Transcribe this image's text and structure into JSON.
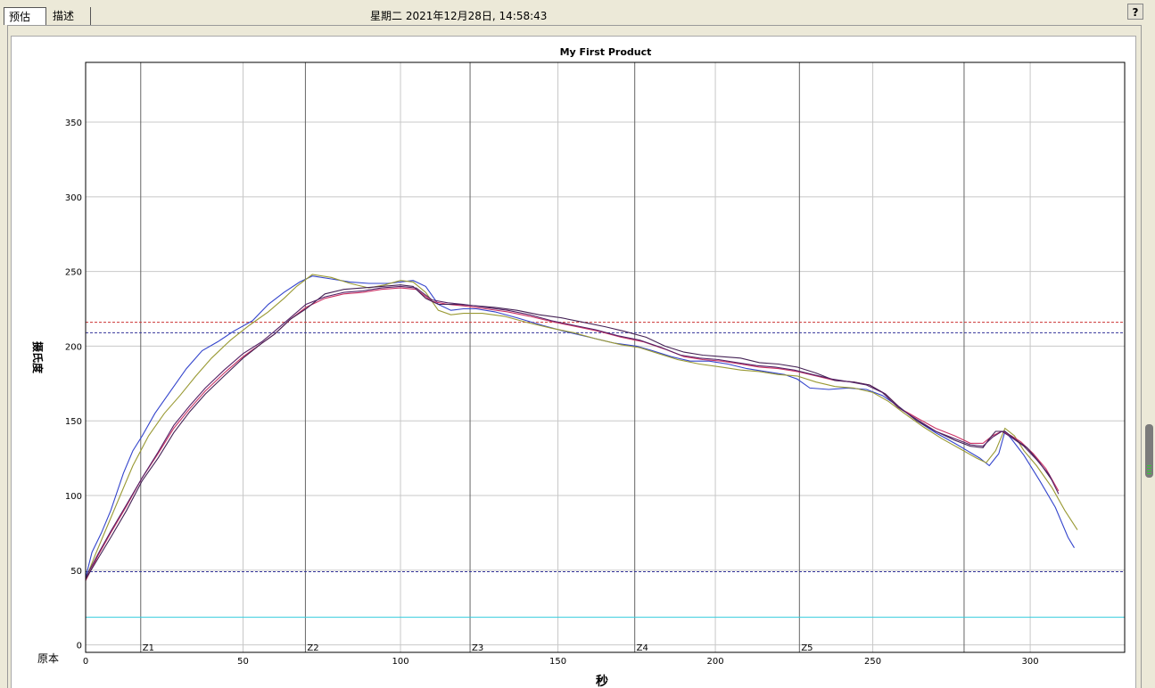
{
  "tabs": [
    {
      "label": "预估"
    },
    {
      "label": "描述"
    }
  ],
  "header": {
    "datetime": "星期二 2021年12月28日, 14:58:43",
    "help_label": "?"
  },
  "chart_data": {
    "type": "line",
    "title": "My First Product",
    "xlabel": "秒",
    "ylabel": "摄氏度",
    "corner_label": "原本",
    "xlim": [
      0,
      330
    ],
    "ylim": [
      -5,
      390
    ],
    "xticks": [
      0,
      50,
      100,
      150,
      200,
      250,
      300
    ],
    "yticks": [
      0,
      50,
      100,
      150,
      200,
      250,
      300,
      350
    ],
    "grid": true,
    "zones": [
      {
        "label": "Z1",
        "x": 17.5
      },
      {
        "label": "Z2",
        "x": 69.8
      },
      {
        "label": "Z3",
        "x": 122.1
      },
      {
        "label": "Z4",
        "x": 174.4
      },
      {
        "label": "Z5",
        "x": 226.7
      },
      {
        "label": "",
        "x": 279.0
      }
    ],
    "reference_lines": [
      {
        "y": 216,
        "color": "#cc3333",
        "style": "dashed"
      },
      {
        "y": 209,
        "color": "#333399",
        "style": "dashed"
      },
      {
        "y": 49,
        "color": "#333399",
        "style": "dashed"
      },
      {
        "y": 18.5,
        "color": "#33ccdd",
        "style": "solid"
      }
    ],
    "series": [
      {
        "color": "#3344cc",
        "points": [
          [
            0,
            45
          ],
          [
            2,
            62
          ],
          [
            5,
            75
          ],
          [
            8,
            90
          ],
          [
            12,
            115
          ],
          [
            15,
            130
          ],
          [
            18,
            140
          ],
          [
            22,
            155
          ],
          [
            27,
            170
          ],
          [
            32,
            185
          ],
          [
            37,
            197
          ],
          [
            42,
            203
          ],
          [
            47,
            210
          ],
          [
            53,
            217
          ],
          [
            58,
            228
          ],
          [
            63,
            236
          ],
          [
            68,
            243
          ],
          [
            72,
            247
          ],
          [
            78,
            245
          ],
          [
            84,
            243
          ],
          [
            90,
            242
          ],
          [
            96,
            242
          ],
          [
            100,
            243
          ],
          [
            104,
            244
          ],
          [
            108,
            240
          ],
          [
            112,
            228
          ],
          [
            116,
            224
          ],
          [
            120,
            225
          ],
          [
            124,
            225
          ],
          [
            130,
            223
          ],
          [
            137,
            219
          ],
          [
            145,
            214
          ],
          [
            152,
            210
          ],
          [
            160,
            206
          ],
          [
            168,
            202
          ],
          [
            175,
            200
          ],
          [
            180,
            197
          ],
          [
            186,
            193
          ],
          [
            192,
            190
          ],
          [
            198,
            190
          ],
          [
            204,
            188
          ],
          [
            210,
            185
          ],
          [
            216,
            183
          ],
          [
            222,
            181
          ],
          [
            226,
            178
          ],
          [
            230,
            172
          ],
          [
            236,
            171
          ],
          [
            242,
            172
          ],
          [
            248,
            171
          ],
          [
            253,
            167
          ],
          [
            258,
            160
          ],
          [
            264,
            150
          ],
          [
            270,
            142
          ],
          [
            276,
            135
          ],
          [
            280,
            130
          ],
          [
            284,
            125
          ],
          [
            287,
            120
          ],
          [
            290,
            128
          ],
          [
            292,
            143
          ],
          [
            294,
            138
          ],
          [
            298,
            127
          ],
          [
            303,
            110
          ],
          [
            308,
            92
          ],
          [
            312,
            72
          ],
          [
            314,
            65
          ]
        ]
      },
      {
        "color": "#999933",
        "points": [
          [
            0,
            44
          ],
          [
            3,
            60
          ],
          [
            7,
            80
          ],
          [
            11,
            100
          ],
          [
            15,
            120
          ],
          [
            20,
            140
          ],
          [
            25,
            155
          ],
          [
            30,
            167
          ],
          [
            35,
            180
          ],
          [
            40,
            192
          ],
          [
            46,
            204
          ],
          [
            52,
            214
          ],
          [
            58,
            223
          ],
          [
            63,
            232
          ],
          [
            67,
            240
          ],
          [
            72,
            248
          ],
          [
            78,
            246
          ],
          [
            84,
            242
          ],
          [
            90,
            239
          ],
          [
            95,
            241
          ],
          [
            100,
            244
          ],
          [
            104,
            243
          ],
          [
            108,
            236
          ],
          [
            112,
            224
          ],
          [
            116,
            221
          ],
          [
            120,
            222
          ],
          [
            126,
            222
          ],
          [
            133,
            220
          ],
          [
            140,
            216
          ],
          [
            148,
            212
          ],
          [
            155,
            209
          ],
          [
            162,
            205
          ],
          [
            170,
            201
          ],
          [
            176,
            199
          ],
          [
            182,
            195
          ],
          [
            188,
            191
          ],
          [
            195,
            188
          ],
          [
            202,
            186
          ],
          [
            208,
            184
          ],
          [
            214,
            183
          ],
          [
            220,
            181
          ],
          [
            226,
            180
          ],
          [
            232,
            176
          ],
          [
            238,
            173
          ],
          [
            244,
            172
          ],
          [
            250,
            169
          ],
          [
            255,
            163
          ],
          [
            260,
            155
          ],
          [
            266,
            146
          ],
          [
            272,
            138
          ],
          [
            278,
            131
          ],
          [
            283,
            125
          ],
          [
            286,
            122
          ],
          [
            289,
            130
          ],
          [
            292,
            145
          ],
          [
            295,
            140
          ],
          [
            298,
            130
          ],
          [
            302,
            120
          ],
          [
            307,
            105
          ],
          [
            311,
            90
          ],
          [
            315,
            77
          ]
        ]
      },
      {
        "color": "#cc3366",
        "points": [
          [
            0,
            43
          ],
          [
            4,
            60
          ],
          [
            8,
            75
          ],
          [
            13,
            93
          ],
          [
            18,
            112
          ],
          [
            23,
            128
          ],
          [
            28,
            145
          ],
          [
            33,
            158
          ],
          [
            38,
            170
          ],
          [
            44,
            182
          ],
          [
            50,
            193
          ],
          [
            56,
            202
          ],
          [
            60,
            208
          ],
          [
            65,
            218
          ],
          [
            70,
            226
          ],
          [
            76,
            232
          ],
          [
            82,
            235
          ],
          [
            88,
            236
          ],
          [
            94,
            238
          ],
          [
            100,
            239
          ],
          [
            105,
            238
          ],
          [
            110,
            230
          ],
          [
            115,
            228
          ],
          [
            120,
            227
          ],
          [
            127,
            225
          ],
          [
            134,
            223
          ],
          [
            141,
            220
          ],
          [
            149,
            216
          ],
          [
            156,
            213
          ],
          [
            163,
            210
          ],
          [
            170,
            206
          ],
          [
            177,
            203
          ],
          [
            184,
            198
          ],
          [
            190,
            193
          ],
          [
            196,
            191
          ],
          [
            202,
            190
          ],
          [
            208,
            188
          ],
          [
            214,
            186
          ],
          [
            220,
            185
          ],
          [
            226,
            183
          ],
          [
            232,
            180
          ],
          [
            238,
            177
          ],
          [
            244,
            176
          ],
          [
            249,
            174
          ],
          [
            254,
            168
          ],
          [
            259,
            158
          ],
          [
            264,
            152
          ],
          [
            270,
            145
          ],
          [
            276,
            140
          ],
          [
            281,
            135
          ],
          [
            285,
            135
          ],
          [
            288,
            140
          ],
          [
            291,
            143
          ],
          [
            294,
            140
          ],
          [
            297,
            136
          ],
          [
            301,
            128
          ],
          [
            305,
            118
          ],
          [
            309,
            103
          ]
        ]
      },
      {
        "color": "#442255",
        "points": [
          [
            0,
            44
          ],
          [
            4,
            58
          ],
          [
            8,
            72
          ],
          [
            13,
            90
          ],
          [
            18,
            110
          ],
          [
            23,
            125
          ],
          [
            28,
            142
          ],
          [
            33,
            156
          ],
          [
            38,
            168
          ],
          [
            44,
            180
          ],
          [
            50,
            192
          ],
          [
            56,
            202
          ],
          [
            60,
            208
          ],
          [
            65,
            218
          ],
          [
            70,
            225
          ],
          [
            76,
            235
          ],
          [
            82,
            238
          ],
          [
            88,
            239
          ],
          [
            94,
            240
          ],
          [
            100,
            241
          ],
          [
            104,
            240
          ],
          [
            108,
            232
          ],
          [
            112,
            228
          ],
          [
            118,
            228
          ],
          [
            124,
            227
          ],
          [
            130,
            226
          ],
          [
            137,
            224
          ],
          [
            144,
            221
          ],
          [
            151,
            219
          ],
          [
            158,
            216
          ],
          [
            165,
            213
          ],
          [
            171,
            210
          ],
          [
            178,
            206
          ],
          [
            184,
            200
          ],
          [
            190,
            196
          ],
          [
            196,
            194
          ],
          [
            202,
            193
          ],
          [
            208,
            192
          ],
          [
            214,
            189
          ],
          [
            220,
            188
          ],
          [
            226,
            186
          ],
          [
            232,
            182
          ],
          [
            238,
            177
          ],
          [
            244,
            176
          ],
          [
            249,
            174
          ],
          [
            254,
            168
          ],
          [
            258,
            160
          ],
          [
            264,
            150
          ],
          [
            270,
            143
          ],
          [
            276,
            137
          ],
          [
            281,
            133
          ],
          [
            285,
            132
          ],
          [
            287,
            138
          ],
          [
            289,
            143
          ],
          [
            292,
            143
          ],
          [
            295,
            138
          ],
          [
            299,
            132
          ],
          [
            303,
            122
          ],
          [
            307,
            110
          ]
        ]
      },
      {
        "color": "#552266",
        "points": [
          [
            0,
            45
          ],
          [
            4,
            61
          ],
          [
            8,
            76
          ],
          [
            13,
            94
          ],
          [
            18,
            112
          ],
          [
            23,
            129
          ],
          [
            28,
            147
          ],
          [
            33,
            160
          ],
          [
            38,
            172
          ],
          [
            44,
            184
          ],
          [
            50,
            195
          ],
          [
            56,
            203
          ],
          [
            60,
            210
          ],
          [
            65,
            219
          ],
          [
            70,
            228
          ],
          [
            76,
            233
          ],
          [
            82,
            236
          ],
          [
            88,
            237
          ],
          [
            94,
            239
          ],
          [
            100,
            240
          ],
          [
            105,
            239
          ],
          [
            110,
            231
          ],
          [
            115,
            229
          ],
          [
            120,
            228
          ],
          [
            127,
            226
          ],
          [
            134,
            224
          ],
          [
            141,
            221
          ],
          [
            148,
            217
          ],
          [
            155,
            214
          ],
          [
            162,
            211
          ],
          [
            169,
            207
          ],
          [
            176,
            204
          ],
          [
            183,
            199
          ],
          [
            189,
            194
          ],
          [
            195,
            192
          ],
          [
            201,
            191
          ],
          [
            207,
            189
          ],
          [
            213,
            187
          ],
          [
            219,
            186
          ],
          [
            225,
            184
          ],
          [
            231,
            181
          ],
          [
            237,
            178
          ],
          [
            243,
            176
          ],
          [
            248,
            174
          ],
          [
            253,
            169
          ],
          [
            258,
            159
          ],
          [
            264,
            151
          ],
          [
            270,
            143
          ],
          [
            276,
            138
          ],
          [
            281,
            134
          ],
          [
            285,
            133
          ],
          [
            288,
            139
          ],
          [
            291,
            143
          ],
          [
            294,
            139
          ],
          [
            298,
            133
          ],
          [
            302,
            124
          ],
          [
            306,
            114
          ],
          [
            309,
            101
          ]
        ]
      }
    ]
  }
}
